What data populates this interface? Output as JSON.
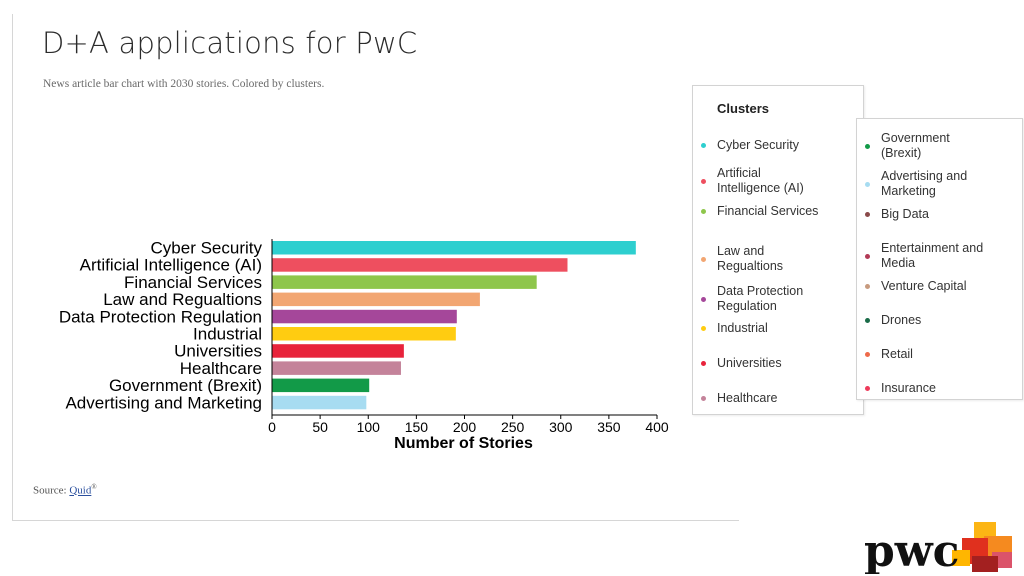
{
  "slide": {
    "title": "D+A applications for PwC",
    "subtitle": "News article bar chart with 2030 stories. Colored by clusters.",
    "source_prefix": "Source: ",
    "source_link": "Quid",
    "source_mark": "®"
  },
  "chart_data": {
    "type": "bar",
    "orientation": "horizontal",
    "categories": [
      "Cyber Security",
      "Artificial Intelligence (AI)",
      "Financial Services",
      "Law and Regualtions",
      "Data Protection Regulation",
      "Industrial",
      "Universities",
      "Healthcare",
      "Government (Brexit)",
      "Advertising and Marketing"
    ],
    "values": [
      378,
      307,
      275,
      216,
      192,
      191,
      137,
      134,
      101,
      98
    ],
    "colors": [
      "#2ecfcf",
      "#ee4f5f",
      "#8ec64b",
      "#f2a672",
      "#a5479a",
      "#ffcc11",
      "#e8233b",
      "#c4839a",
      "#129a48",
      "#a7dcf1"
    ],
    "xlabel": "Number of Stories",
    "xlim": [
      0,
      400
    ],
    "xticks": [
      0,
      50,
      100,
      150,
      200,
      250,
      300,
      350,
      400
    ],
    "grid": false
  },
  "legend": {
    "title": "Clusters",
    "columns": [
      [
        {
          "label": "Cyber Security",
          "color": "#2ecfcf"
        },
        {
          "label": "Artificial Intelligence (AI)",
          "color": "#ee4f5f"
        },
        {
          "label": "Financial Services",
          "color": "#8ec64b"
        },
        {
          "label": "Law and Regualtions",
          "color": "#f2a672"
        },
        {
          "label": "Data Protection Regulation",
          "color": "#a5479a"
        },
        {
          "label": "Industrial",
          "color": "#ffcc11"
        },
        {
          "label": "Universities",
          "color": "#e8233b"
        },
        {
          "label": "Healthcare",
          "color": "#c4839a"
        }
      ],
      [
        {
          "label": "Government (Brexit)",
          "color": "#129a48"
        },
        {
          "label": "Advertising and Marketing",
          "color": "#a7dcf1"
        },
        {
          "label": "Big Data",
          "color": "#8a4a4a"
        },
        {
          "label": "Entertainment and Media",
          "color": "#b23a56"
        },
        {
          "label": "Venture Capital",
          "color": "#c79a7e"
        },
        {
          "label": "Drones",
          "color": "#1a6b48"
        },
        {
          "label": "Retail",
          "color": "#ee6a4a"
        },
        {
          "label": "Insurance",
          "color": "#ee3a5a"
        }
      ]
    ]
  },
  "logo": {
    "text": "pwc"
  }
}
